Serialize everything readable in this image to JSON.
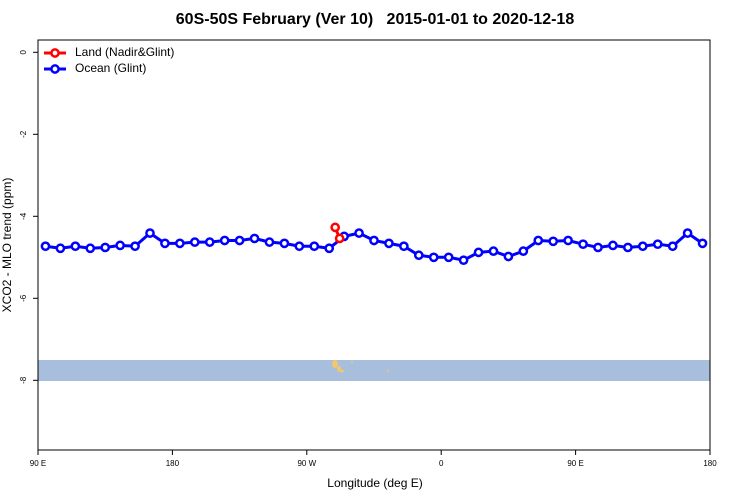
{
  "chart_data": {
    "type": "line",
    "title": "60S-50S February (Ver 10)   2015-01-01 to 2020-12-18",
    "x_label": "Longitude (deg E)",
    "y_label": "XCO2 - MLO trend (ppm)",
    "xlim": [
      90,
      540
    ],
    "xticks": [
      {
        "value": 90,
        "label": "90 E"
      },
      180,
      {
        "value": 270,
        "label": "90 W"
      },
      {
        "value": 360,
        "label": "0"
      },
      {
        "value": 450,
        "label": "90 E"
      },
      {
        "value": 540,
        "label": "180"
      }
    ],
    "ylim": [
      -9.7,
      0.3
    ],
    "yticks": [
      0,
      -2,
      -4,
      -6,
      -8
    ],
    "legend": "top-left",
    "series": [
      {
        "name": "Land (Nadir&Glint)",
        "color": "#ff0000",
        "x": [
          289,
          292
        ],
        "values": [
          -4.27,
          -4.54
        ]
      },
      {
        "name": "Ocean (Glint)",
        "color": "#0000ff",
        "x": [
          95,
          105,
          115,
          125,
          135,
          145,
          155,
          165,
          175,
          185,
          195,
          205,
          215,
          225,
          235,
          245,
          255,
          265,
          275,
          285,
          295,
          305,
          315,
          325,
          335,
          345,
          355,
          365,
          375,
          385,
          395,
          405,
          415,
          425,
          435,
          445,
          455,
          465,
          475,
          485,
          495,
          505,
          515,
          525,
          535
        ],
        "values": [
          -4.73,
          -4.78,
          -4.73,
          -4.78,
          -4.76,
          -4.71,
          -4.73,
          -4.41,
          -4.66,
          -4.66,
          -4.63,
          -4.63,
          -4.59,
          -4.59,
          -4.54,
          -4.63,
          -4.66,
          -4.73,
          -4.73,
          -4.78,
          -4.49,
          -4.41,
          -4.59,
          -4.66,
          -4.73,
          -4.95,
          -5.0,
          -5.0,
          -5.07,
          -4.88,
          -4.85,
          -4.98,
          -4.85,
          -4.59,
          -4.61,
          -4.59,
          -4.68,
          -4.76,
          -4.71,
          -4.76,
          -4.73,
          -4.68,
          -4.73,
          -4.41,
          -4.66
        ]
      }
    ]
  }
}
